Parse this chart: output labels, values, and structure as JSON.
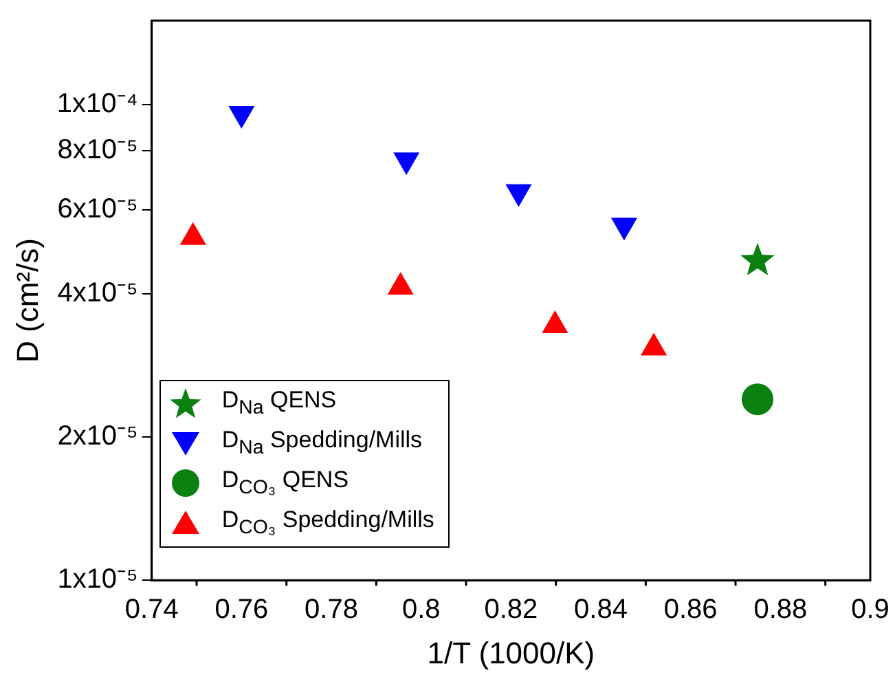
{
  "chart_data": {
    "type": "scatter",
    "xlabel": "1/T (1000/K)",
    "ylabel": "D (cm²/s)",
    "xlim": [
      0.74,
      0.9
    ],
    "xticks": [
      0.74,
      0.76,
      0.78,
      0.8,
      0.82,
      0.84,
      0.86,
      0.88,
      0.9
    ],
    "ylim": [
      1e-05,
      0.00015
    ],
    "yticks": [
      {
        "value": 1e-05,
        "label": "1x10⁻⁵"
      },
      {
        "value": 2e-05,
        "label": "2x10⁻⁵"
      },
      {
        "value": 4e-05,
        "label": "4x10⁻⁵"
      },
      {
        "value": 6e-05,
        "label": "6x10⁻⁵"
      },
      {
        "value": 8e-05,
        "label": "8x10⁻⁵"
      },
      {
        "value": 0.0001,
        "label": "1x10⁻⁴"
      }
    ],
    "log": "y",
    "grid": false,
    "legend": "bottom left",
    "series": [
      {
        "name": "D$_{Na}$ QENS",
        "color": "#0a8010",
        "marker": "star",
        "x": [
          0.8749
        ],
        "values": [
          4.69e-05
        ]
      },
      {
        "name": "D$_{Na}$ Spedding/Mills",
        "color": "#0000ff",
        "marker": "triangle-down",
        "x": [
          0.76,
          0.7967,
          0.8217,
          0.8452
        ],
        "values": [
          9.57e-05,
          7.64e-05,
          6.55e-05,
          5.57e-05
        ]
      },
      {
        "name": "D$_{CO₃}$ QENS",
        "color": "#0a8010",
        "marker": "circle",
        "x": [
          0.8749
        ],
        "values": [
          2.4e-05
        ]
      },
      {
        "name": "D$_{CO₃}$ Spedding/Mills",
        "color": "#ff0000",
        "marker": "triangle",
        "x": [
          0.7492,
          0.7954,
          0.8298,
          0.8518
        ],
        "values": [
          5.26e-05,
          4.13e-05,
          3.43e-05,
          3.08e-05
        ]
      }
    ]
  }
}
